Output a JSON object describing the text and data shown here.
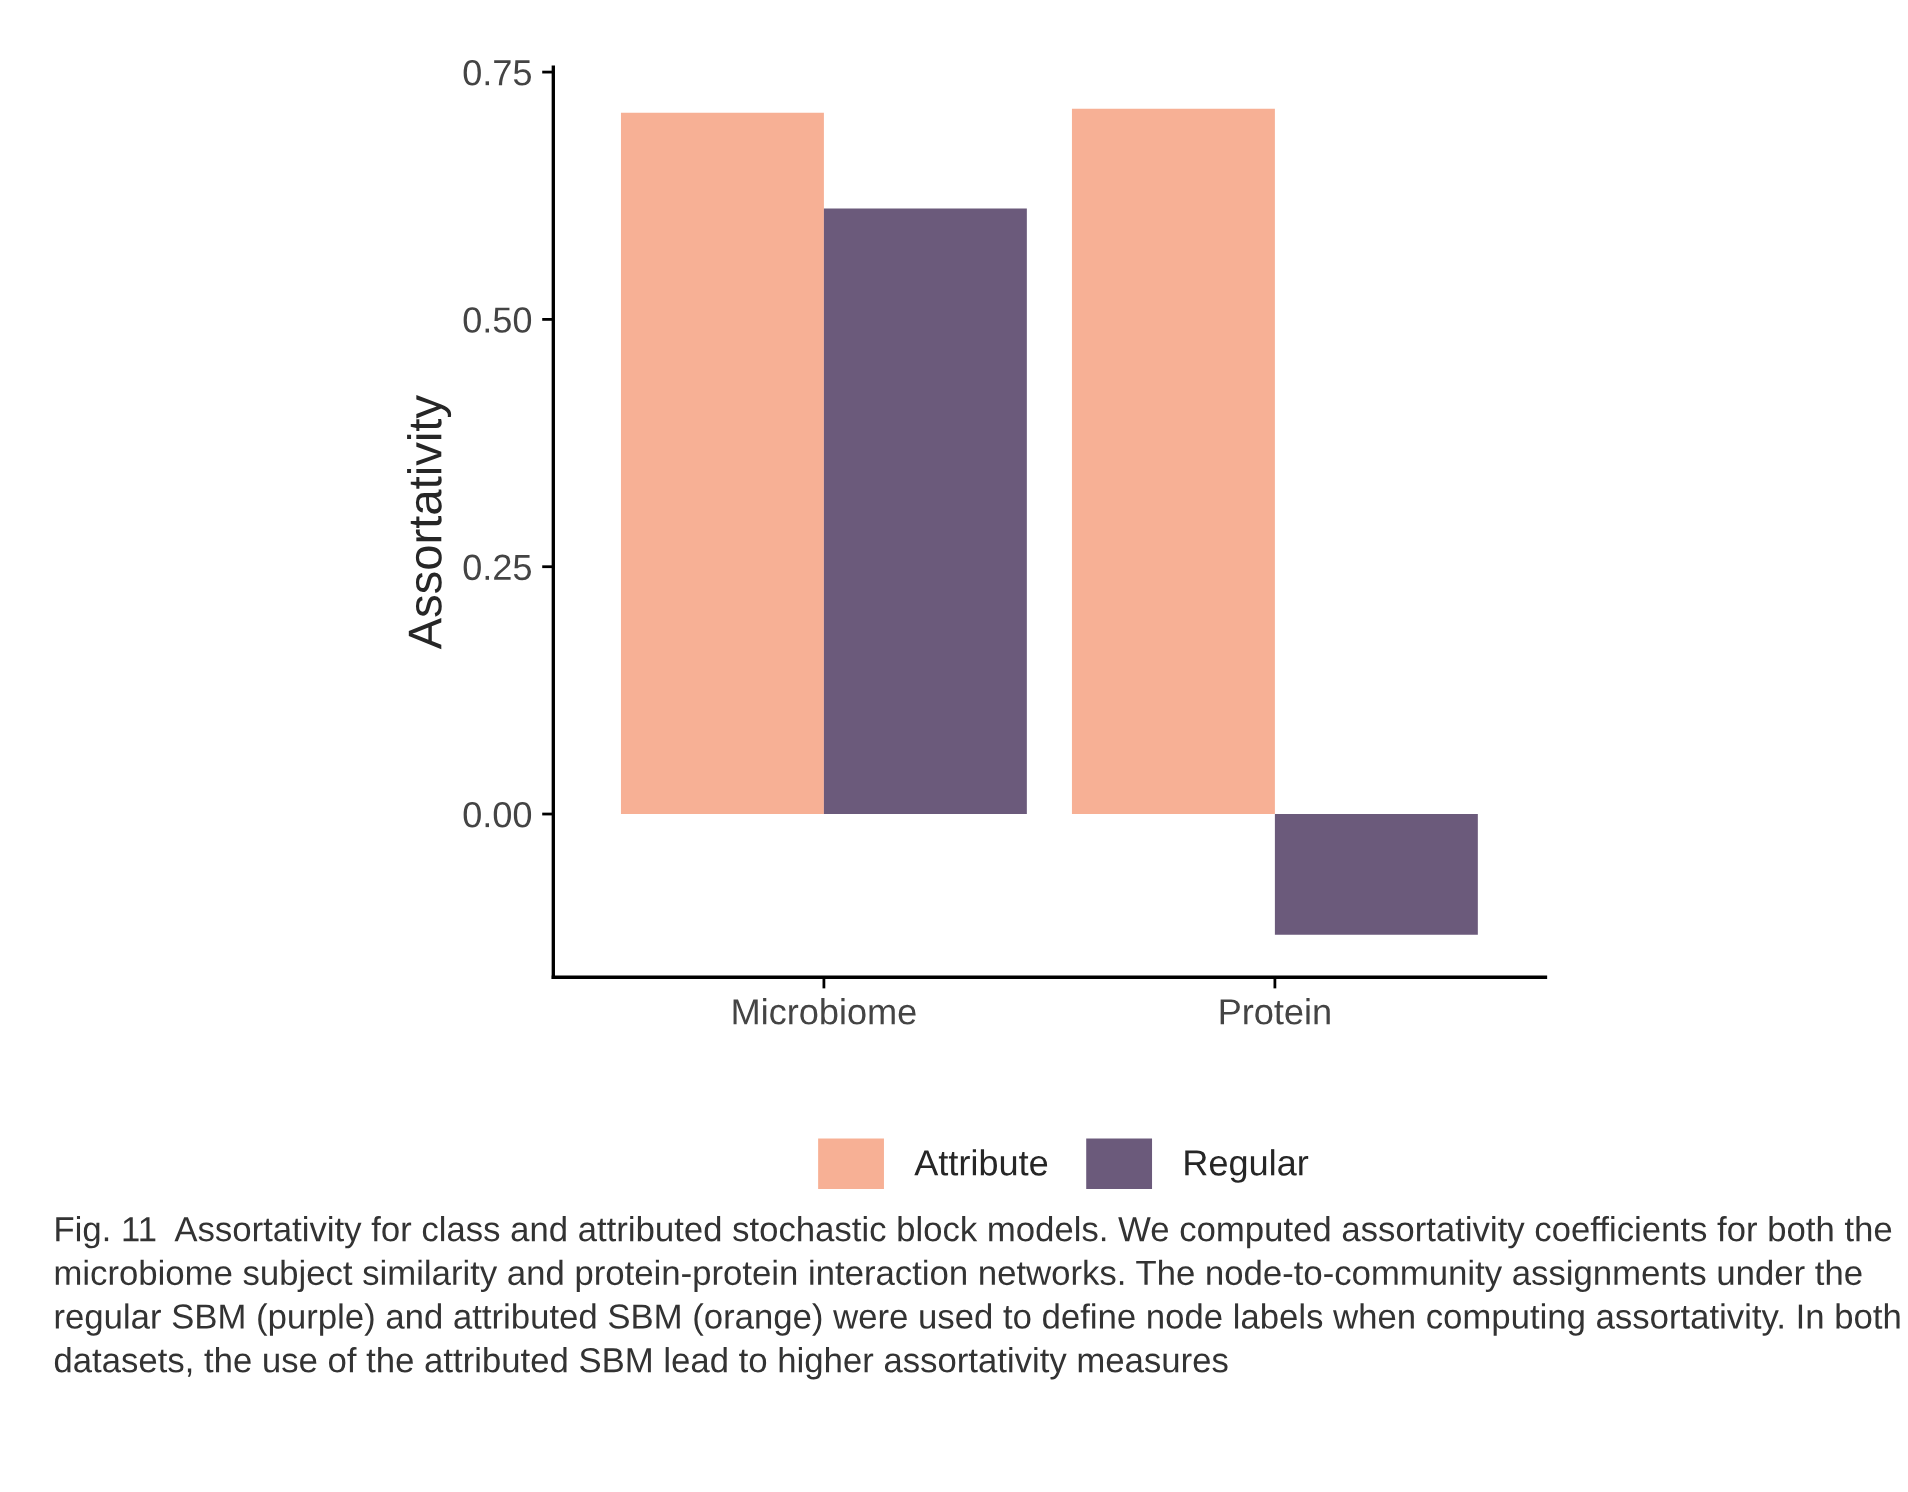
{
  "chart_data": {
    "type": "bar",
    "ylabel": "Assortativity",
    "categories": [
      "Microbiome",
      "Protein"
    ],
    "series": [
      {
        "name": "Attribute",
        "color": "#f7b095",
        "values": [
          0.709,
          0.713
        ]
      },
      {
        "name": "Regular",
        "color": "#6b5a7b",
        "values": [
          0.612,
          -0.122
        ]
      }
    ],
    "ylim": [
      -0.165,
      0.755
    ],
    "yticks": [
      {
        "value": 0,
        "label": "0.00"
      },
      {
        "value": 0.25,
        "label": "0.25"
      },
      {
        "value": 0.5,
        "label": "0.50"
      },
      {
        "value": 0.75,
        "label": "0.75"
      }
    ],
    "legend": "bottom",
    "grid": false,
    "annotations": [
      "Fig. 11  Assortativity for class and attributed stochastic block models. We computed assortativity coefficients for both the microbiome subject similarity and protein-protein interaction networks. The node-to-community assignments under the regular SBM (purple) and attributed SBM (orange) were used to define node labels when computing assortativity. In both datasets, the use of the attributed SBM lead to higher assortativity measures"
    ]
  }
}
